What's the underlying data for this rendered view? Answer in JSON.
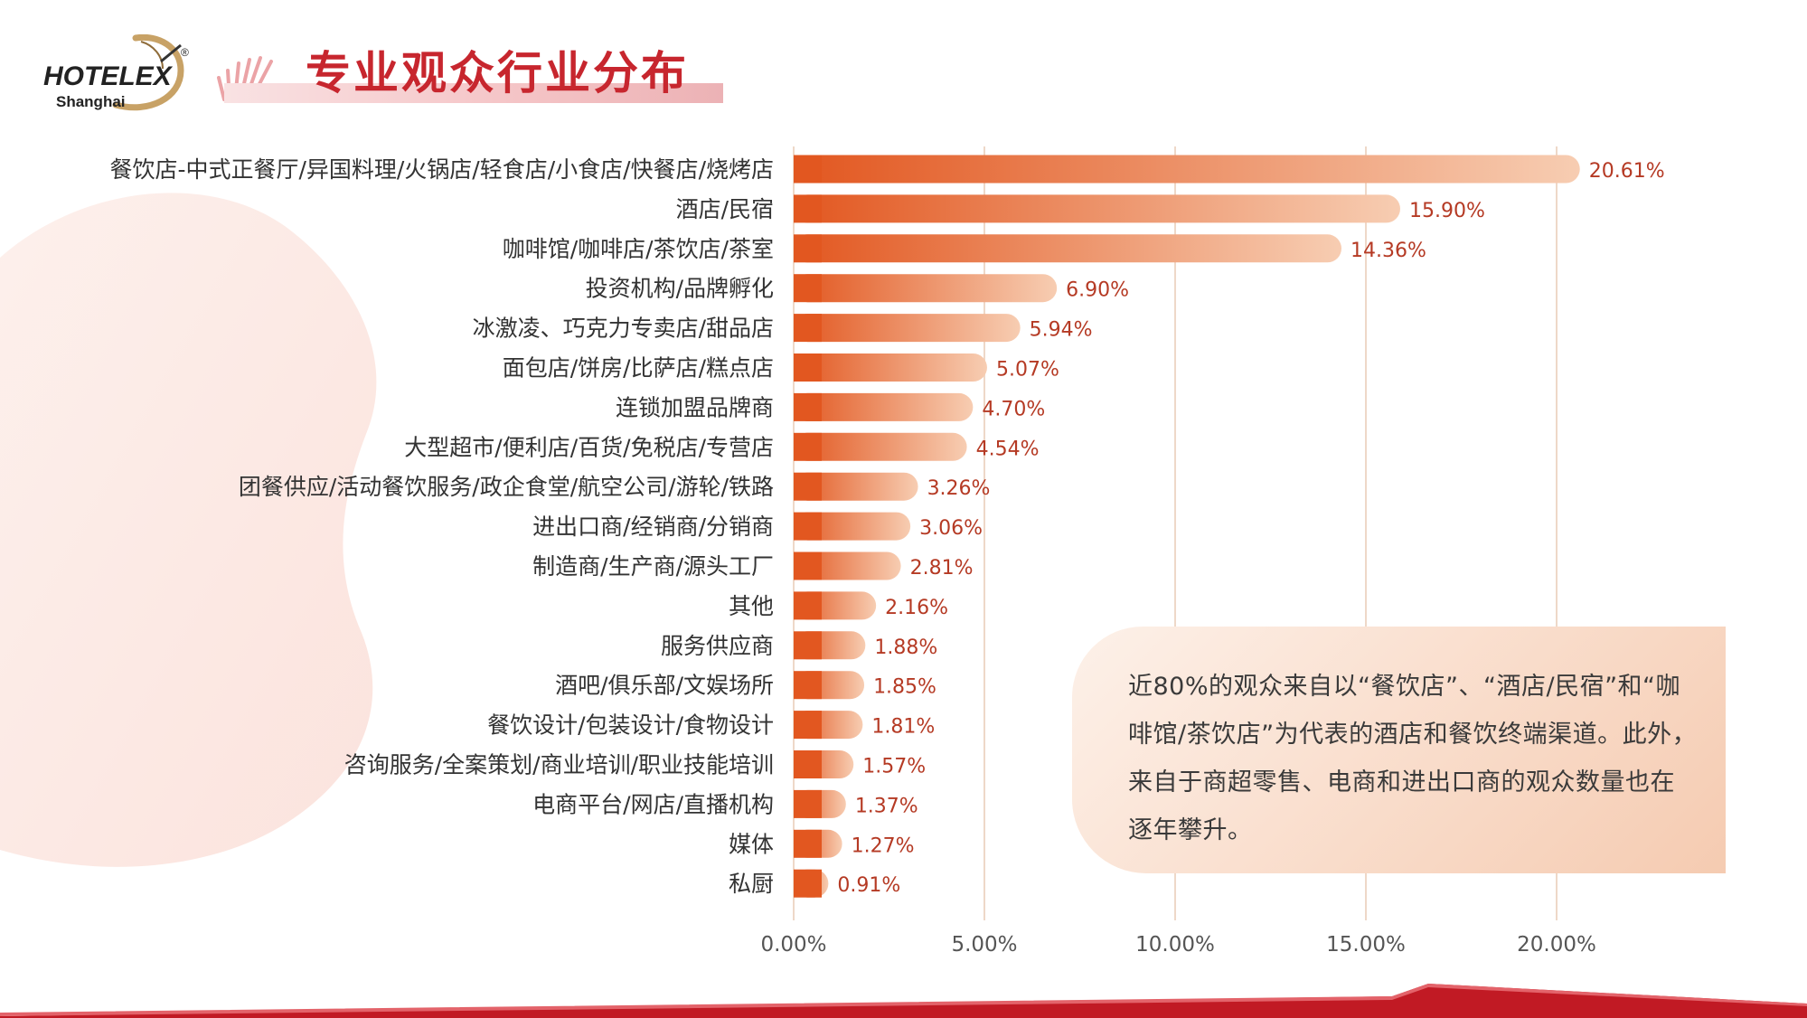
{
  "header": {
    "logo_wordmark": "HOTELEX",
    "logo_city": "Shanghai",
    "logo_mark": "®",
    "title": "专业观众行业分布"
  },
  "colors": {
    "bar_start": "#e25720",
    "bar_end": "#f7cdb2",
    "value_label": "#b53a24",
    "grid": "#eed8c8",
    "title": "#c7262e",
    "bottom_band": "#c11a24"
  },
  "chart_data": {
    "type": "bar",
    "orientation": "horizontal",
    "categories": [
      "餐饮店-中式正餐厅/异国料理/火锅店/轻食店/小食店/快餐店/烧烤店",
      "酒店/民宿",
      "咖啡馆/咖啡店/茶饮店/茶室",
      "投资机构/品牌孵化",
      "冰激凌、巧克力专卖店/甜品店",
      "面包店/饼房/比萨店/糕点店",
      "连锁加盟品牌商",
      "大型超市/便利店/百货/免税店/专营店",
      "团餐供应/活动餐饮服务/政企食堂/航空公司/游轮/铁路",
      "进出口商/经销商/分销商",
      "制造商/生产商/源头工厂",
      "其他",
      "服务供应商",
      "酒吧/俱乐部/文娱场所",
      "餐饮设计/包装设计/食物设计",
      "咨询服务/全案策划/商业培训/职业技能培训",
      "电商平台/网店/直播机构",
      "媒体",
      "私厨"
    ],
    "values": [
      20.61,
      15.9,
      14.36,
      6.9,
      5.94,
      5.07,
      4.7,
      4.54,
      3.26,
      3.06,
      2.81,
      2.16,
      1.88,
      1.85,
      1.81,
      1.57,
      1.37,
      1.27,
      0.91
    ],
    "value_labels": [
      "20.61%",
      "15.90%",
      "14.36%",
      "6.90%",
      "5.94%",
      "5.07%",
      "4.70%",
      "4.54%",
      "3.26%",
      "3.06%",
      "2.81%",
      "2.16%",
      "1.88%",
      "1.85%",
      "1.81%",
      "1.57%",
      "1.37%",
      "1.27%",
      "0.91%"
    ],
    "xlim": [
      0,
      20
    ],
    "x_ticks": [
      0,
      5,
      10,
      15,
      20
    ],
    "x_tick_labels": [
      "0.00%",
      "5.00%",
      "10.00%",
      "15.00%",
      "20.00%"
    ],
    "grid": true,
    "title": "",
    "xlabel": "",
    "ylabel": ""
  },
  "note": {
    "text": "近80%的观众来自以“餐饮店”、“酒店/民宿”和“咖啡馆/茶饮店”为代表的酒店和餐饮终端渠道。此外，来自于商超零售、电商和进出口商的观众数量也在逐年攀升。"
  }
}
